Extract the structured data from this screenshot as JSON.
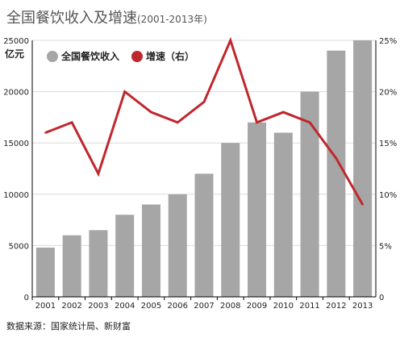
{
  "title": "全国餐饮收入及增速",
  "subtitle": "(2001-2013年)",
  "unit_left": "亿元",
  "source": "数据来源：国家统计局、新财富",
  "colors": {
    "bar": "#a6a6a6",
    "line": "#c0272d",
    "grid": "#dcdcdc",
    "axis": "#000000"
  },
  "chart_data": {
    "type": "bar",
    "categories": [
      "2001",
      "2002",
      "2003",
      "2004",
      "2005",
      "2006",
      "2007",
      "2008",
      "2009",
      "2010",
      "2011",
      "2012",
      "2013"
    ],
    "y_left": {
      "range": [
        0,
        25000
      ],
      "ticks": [
        "0",
        "5000",
        "10000",
        "15000",
        "20000",
        "25000"
      ],
      "label": "亿元"
    },
    "y_right": {
      "range": [
        0,
        25
      ],
      "ticks": [
        "0",
        "5%",
        "10%",
        "15%",
        "20%",
        "25%"
      ]
    },
    "grid": true,
    "legend_position": "top-left",
    "series": [
      {
        "name": "全国餐饮收入",
        "type": "bar",
        "axis": "left",
        "values": [
          4800,
          6000,
          6500,
          8000,
          9000,
          10000,
          12000,
          15000,
          17000,
          16000,
          20000,
          24000,
          25000
        ]
      },
      {
        "name": "增速（右）",
        "type": "line",
        "axis": "right",
        "values": [
          16,
          17,
          12,
          20,
          18,
          17,
          19,
          25,
          17,
          18,
          17,
          13.5,
          9
        ]
      }
    ]
  }
}
